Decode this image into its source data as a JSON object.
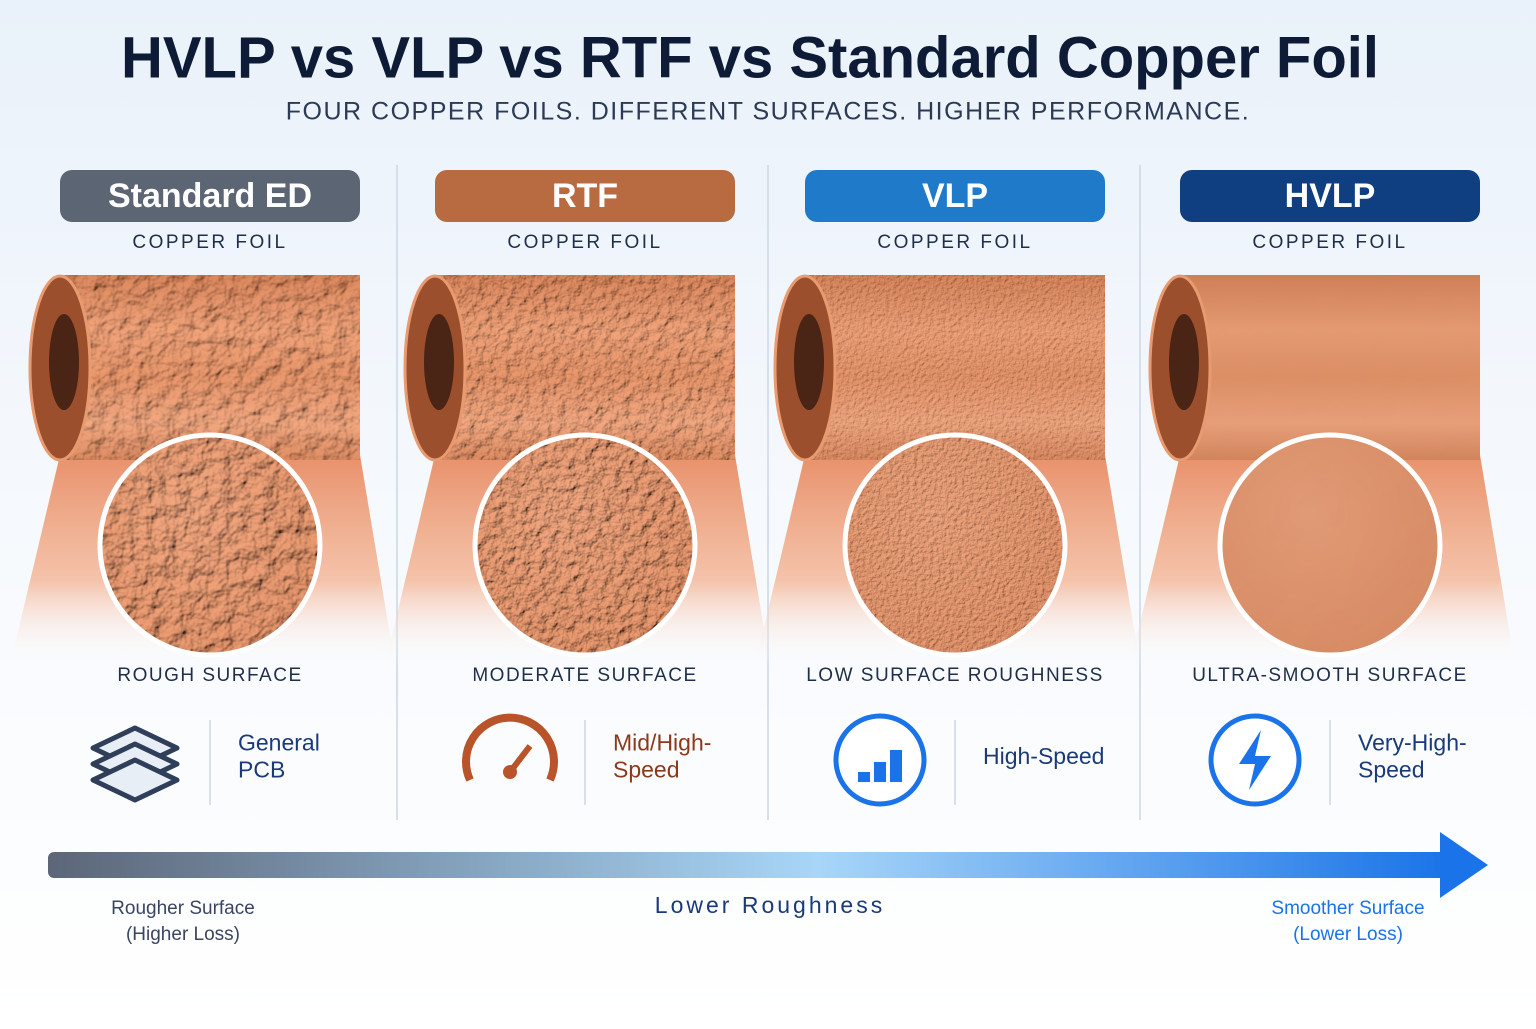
{
  "header": {
    "title": "HVLP vs VLP vs RTF vs Standard Copper Foil",
    "subtitle": "FOUR COPPER FOILS. DIFFERENT SURFACES. HIGHER PERFORMANCE."
  },
  "columns": [
    {
      "badge": "Standard ED",
      "kind": "COPPER FOIL",
      "surface": "ROUGH SURFACE",
      "use": [
        "General",
        "PCB"
      ]
    },
    {
      "badge": "RTF",
      "kind": "COPPER FOIL",
      "surface": "MODERATE SURFACE",
      "use": [
        "Mid/High-",
        "Speed"
      ]
    },
    {
      "badge": "VLP",
      "kind": "COPPER FOIL",
      "surface": "LOW SURFACE ROUGHNESS",
      "use": [
        "High-Speed"
      ]
    },
    {
      "badge": "HVLP",
      "kind": "COPPER FOIL",
      "surface": "ULTRA-SMOOTH SURFACE",
      "use": [
        "Very-High-",
        "Speed"
      ]
    }
  ],
  "scale": {
    "left": [
      "Rougher Surface",
      "(Higher Loss)"
    ],
    "center": "Lower Roughness",
    "right": [
      "Smoother Surface",
      "(Lower Loss)"
    ]
  }
}
